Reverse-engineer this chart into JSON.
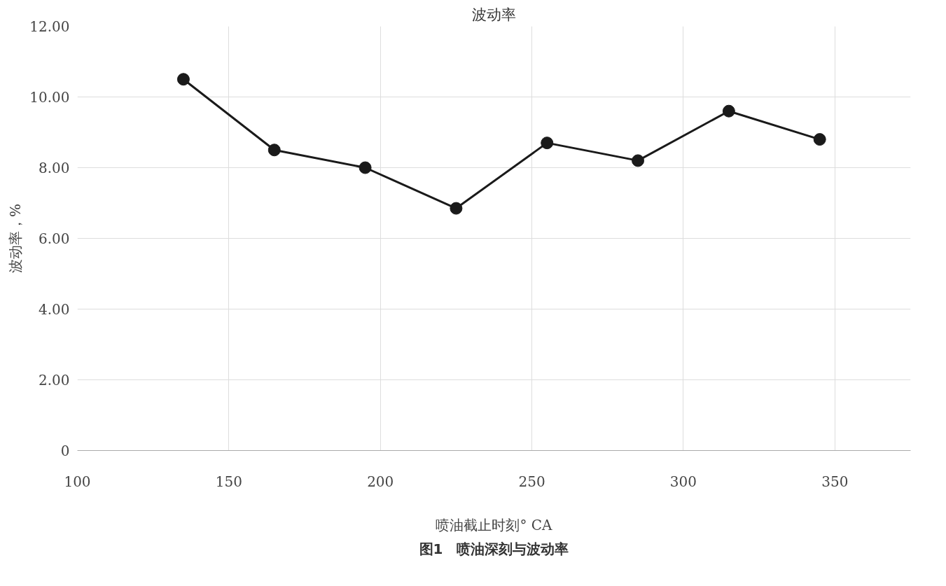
{
  "chart_data": {
    "type": "line",
    "title": "波动率",
    "xlabel": "喷油截止时刻° CA",
    "ylabel": "波动率，%",
    "annotations": [
      "图1　喷油深刻与波动率"
    ],
    "x": [
      135,
      165,
      195,
      225,
      255,
      285,
      315,
      345
    ],
    "series": [
      {
        "color": "#1a1a1a",
        "values": [
          10.5,
          8.5,
          8.0,
          6.85,
          8.7,
          8.2,
          9.6,
          8.8
        ]
      }
    ],
    "xlim": [
      100,
      375
    ],
    "xticks": [
      100,
      150,
      200,
      250,
      300,
      350
    ],
    "ylim": [
      0,
      12
    ],
    "yticks": [
      {
        "value": 0,
        "label": "0"
      },
      {
        "value": 2,
        "label": "2.00"
      },
      {
        "value": 4,
        "label": "4.00"
      },
      {
        "value": 6,
        "label": "6.00"
      },
      {
        "value": 8,
        "label": "8.00"
      },
      {
        "value": 10,
        "label": "10.00"
      },
      {
        "value": 12,
        "label": "12.00"
      }
    ],
    "grid": true,
    "marker": "circle",
    "line_style": "solid"
  }
}
